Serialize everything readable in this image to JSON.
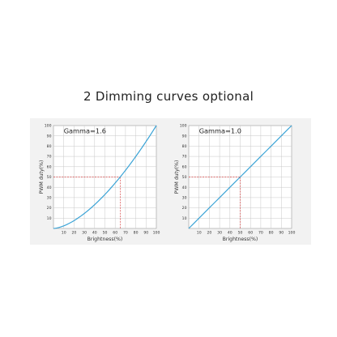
{
  "page": {
    "title": "2 Dimming curves optional"
  },
  "colors": {
    "curve": "#3aa3d6",
    "guide": "#d94848",
    "grid": "#c8c8c8",
    "panel_bg": "#f2f2f2"
  },
  "chart_data": [
    {
      "type": "line",
      "annotation": "Gamma=1.6",
      "xlabel": "Brightness(%)",
      "ylabel": "PWM duty(%)",
      "xlim": [
        0,
        100
      ],
      "ylim": [
        0,
        100
      ],
      "xticks": [
        "10",
        "20",
        "30",
        "40",
        "50",
        "60",
        "70",
        "80",
        "90",
        "100"
      ],
      "yticks": [
        "10",
        "20",
        "30",
        "40",
        "50",
        "60",
        "70",
        "80",
        "90",
        "100"
      ],
      "grid": true,
      "gamma": 1.6,
      "x": [
        0,
        10,
        20,
        30,
        40,
        50,
        60,
        65,
        70,
        80,
        90,
        100
      ],
      "y": [
        0,
        2.5,
        7.6,
        14.6,
        23.1,
        33.0,
        44.2,
        50.0,
        56.5,
        70.0,
        84.5,
        100
      ],
      "guide": {
        "x": 65,
        "y": 50
      }
    },
    {
      "type": "line",
      "annotation": "Gamma=1.0",
      "xlabel": "Brightness(%)",
      "ylabel": "PWM duty(%)",
      "xlim": [
        0,
        100
      ],
      "ylim": [
        0,
        100
      ],
      "xticks": [
        "10",
        "20",
        "30",
        "40",
        "50",
        "60",
        "70",
        "80",
        "90",
        "100"
      ],
      "yticks": [
        "10",
        "20",
        "30",
        "40",
        "50",
        "60",
        "70",
        "80",
        "90",
        "100"
      ],
      "grid": true,
      "gamma": 1.0,
      "x": [
        0,
        50,
        100
      ],
      "y": [
        0,
        50,
        100
      ],
      "guide": {
        "x": 50,
        "y": 50
      }
    }
  ]
}
